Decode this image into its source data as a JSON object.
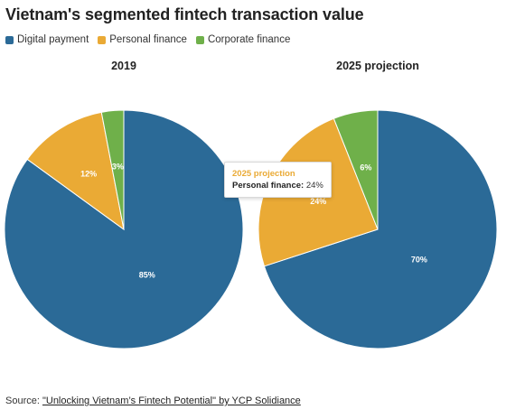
{
  "title": "Vietnam's segmented fintech transaction value",
  "legend": [
    {
      "label": "Digital payment",
      "color": "#2b6a97"
    },
    {
      "label": "Personal finance",
      "color": "#eaaa35"
    },
    {
      "label": "Corporate finance",
      "color": "#6fb04a"
    }
  ],
  "chart_data": [
    {
      "type": "pie",
      "title": "2019",
      "categories": [
        "Digital payment",
        "Personal finance",
        "Corporate finance"
      ],
      "values": [
        85,
        12,
        3
      ],
      "data_labels": [
        "85%",
        "12%",
        "3%"
      ],
      "colors": [
        "#2b6a97",
        "#eaaa35",
        "#6fb04a"
      ]
    },
    {
      "type": "pie",
      "title": "2025 projection",
      "categories": [
        "Digital payment",
        "Personal finance",
        "Corporate finance"
      ],
      "values": [
        70,
        24,
        6
      ],
      "data_labels": [
        "70%",
        "24%",
        "6%"
      ],
      "colors": [
        "#2b6a97",
        "#eaaa35",
        "#6fb04a"
      ]
    }
  ],
  "tooltip": {
    "title": "2025 projection",
    "key": "Personal finance:",
    "value": "24%"
  },
  "source": {
    "prefix": "Source: ",
    "link_text": "\"Unlocking Vietnam’s Fintech Potential\" by YCP Solidiance"
  }
}
